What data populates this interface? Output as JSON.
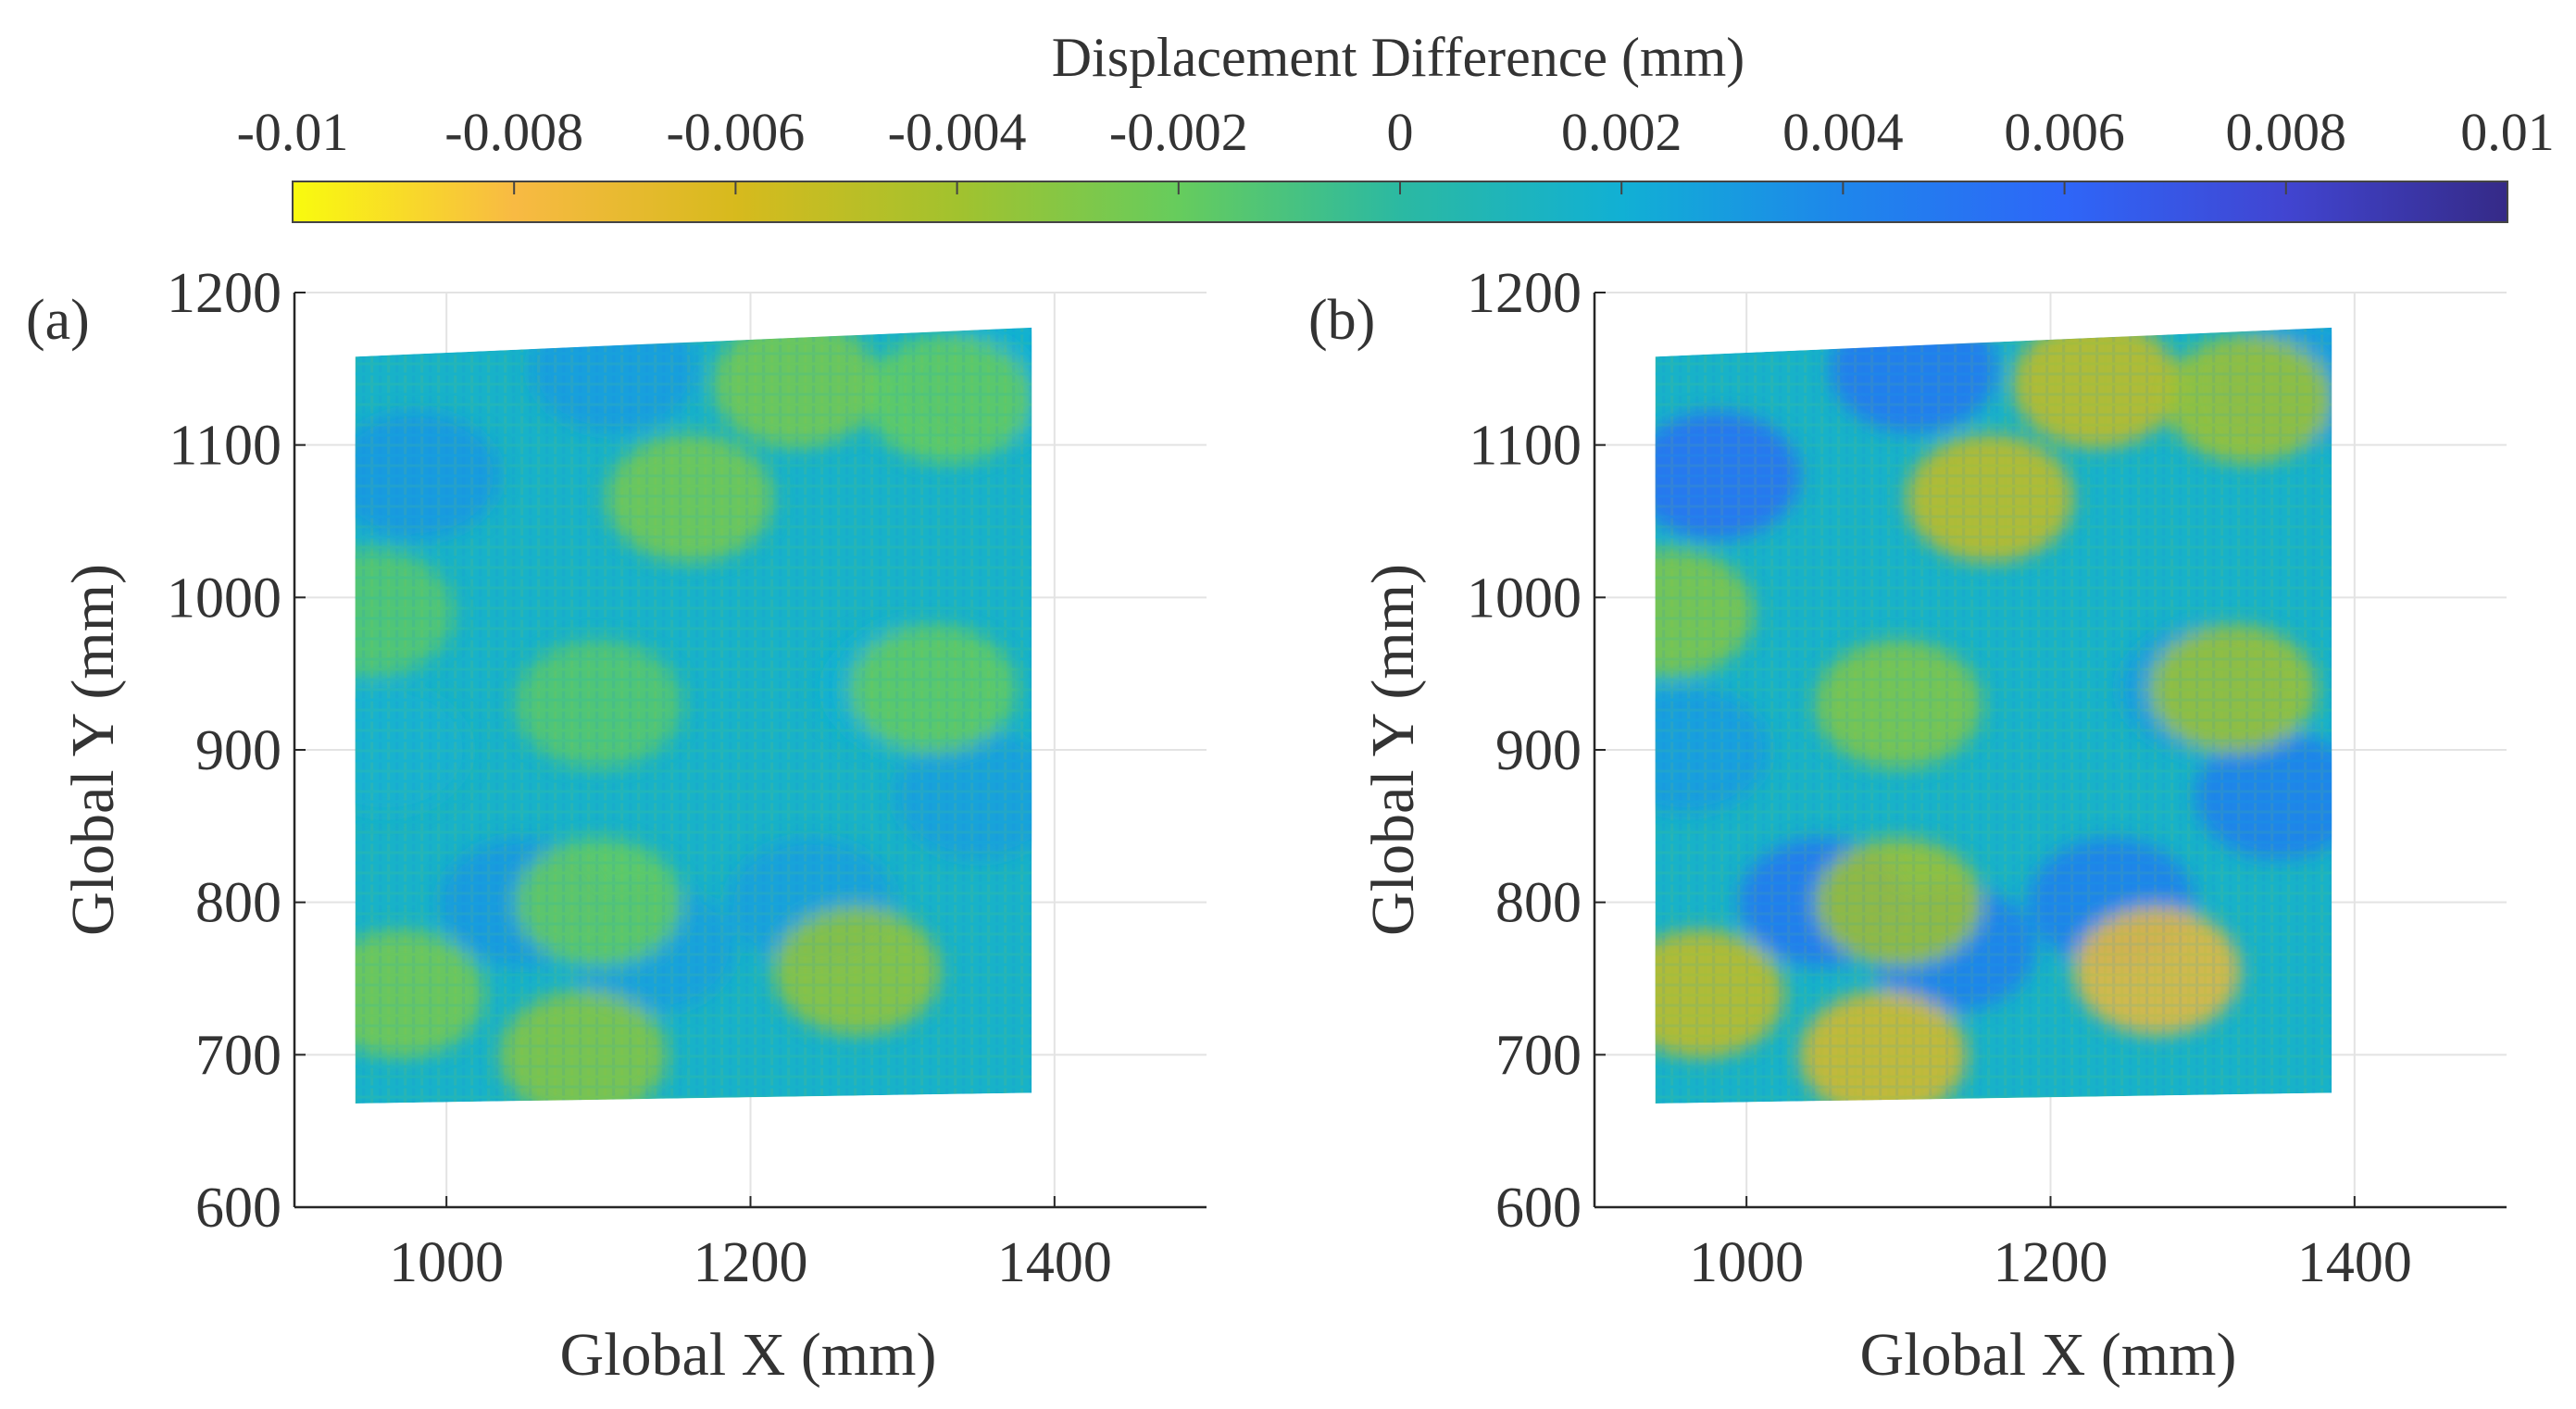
{
  "chart_data": {
    "colorbar": {
      "title": "Displacement Difference (mm)",
      "range": [
        -0.01,
        0.01
      ],
      "ticks": [
        -0.01,
        -0.008,
        -0.006,
        -0.004,
        -0.002,
        0,
        0.002,
        0.004,
        0.006,
        0.008,
        0.01
      ],
      "tick_labels": [
        "-0.01",
        "-0.008",
        "-0.006",
        "-0.004",
        "-0.002",
        "0",
        "0.002",
        "0.004",
        "0.006",
        "0.008",
        "0.01"
      ],
      "colormap": "parula",
      "colors": [
        "#f9fb0e",
        "#f8ba43",
        "#d7ba1d",
        "#a2c22e",
        "#66cc5d",
        "#2bb9a2",
        "#11b0d4",
        "#1e86eb",
        "#2e66f8",
        "#4145d1",
        "#352a87"
      ]
    },
    "charts": [
      {
        "type": "heatmap",
        "panel_label": "(a)",
        "xlabel": "Global X (mm)",
        "ylabel": "Global Y (mm)",
        "xlim": [
          900,
          1500
        ],
        "ylim": [
          600,
          1200
        ],
        "xticks": [
          1000,
          1200,
          1400
        ],
        "yticks": [
          600,
          700,
          800,
          900,
          1000,
          1100,
          1200
        ],
        "grid": true,
        "region": {
          "x": [
            940,
            1385
          ],
          "y_bottom": [
            668,
            675
          ],
          "y_top": [
            1158,
            1177
          ]
        },
        "value_range_approx": [
          -0.004,
          0.004
        ],
        "blobs": [
          {
            "x": 980,
            "y": 1080,
            "v": 0.0032
          },
          {
            "x": 1050,
            "y": 800,
            "v": 0.0032
          },
          {
            "x": 1135,
            "y": 770,
            "v": 0.0028
          },
          {
            "x": 1240,
            "y": 800,
            "v": 0.0028
          },
          {
            "x": 1110,
            "y": 1150,
            "v": 0.003
          },
          {
            "x": 1350,
            "y": 870,
            "v": 0.0028
          },
          {
            "x": 1300,
            "y": 940,
            "v": 0.002
          },
          {
            "x": 1360,
            "y": 1140,
            "v": 0.002
          },
          {
            "x": 960,
            "y": 900,
            "v": 0.0018
          },
          {
            "x": 1090,
            "y": 700,
            "v": -0.0032
          },
          {
            "x": 1270,
            "y": 755,
            "v": -0.0036
          },
          {
            "x": 1160,
            "y": 1065,
            "v": -0.0026
          },
          {
            "x": 1230,
            "y": 1140,
            "v": -0.0026
          },
          {
            "x": 1330,
            "y": 1130,
            "v": -0.002
          },
          {
            "x": 970,
            "y": 740,
            "v": -0.0026
          },
          {
            "x": 1320,
            "y": 940,
            "v": -0.002
          },
          {
            "x": 1100,
            "y": 800,
            "v": -0.002
          },
          {
            "x": 1100,
            "y": 930,
            "v": -0.0016
          },
          {
            "x": 950,
            "y": 990,
            "v": -0.0016
          }
        ]
      },
      {
        "type": "heatmap",
        "panel_label": "(b)",
        "xlabel": "Global X (mm)",
        "ylabel": "Global Y (mm)",
        "xlim": [
          900,
          1500
        ],
        "ylim": [
          600,
          1200
        ],
        "xticks": [
          1000,
          1200,
          1400
        ],
        "yticks": [
          600,
          700,
          800,
          900,
          1000,
          1100,
          1200
        ],
        "grid": true,
        "region": {
          "x": [
            940,
            1385
          ],
          "y_bottom": [
            668,
            675
          ],
          "y_top": [
            1158,
            1177
          ]
        },
        "value_range_approx": [
          -0.008,
          0.006
        ],
        "blobs": [
          {
            "x": 980,
            "y": 1080,
            "v": 0.0055
          },
          {
            "x": 1050,
            "y": 800,
            "v": 0.005
          },
          {
            "x": 1135,
            "y": 770,
            "v": 0.0045
          },
          {
            "x": 1240,
            "y": 800,
            "v": 0.0045
          },
          {
            "x": 1110,
            "y": 1150,
            "v": 0.005
          },
          {
            "x": 1350,
            "y": 870,
            "v": 0.0045
          },
          {
            "x": 1300,
            "y": 940,
            "v": 0.003
          },
          {
            "x": 1360,
            "y": 1140,
            "v": 0.003
          },
          {
            "x": 960,
            "y": 900,
            "v": 0.003
          },
          {
            "x": 1090,
            "y": 700,
            "v": -0.0065
          },
          {
            "x": 1270,
            "y": 755,
            "v": -0.0075
          },
          {
            "x": 1160,
            "y": 1065,
            "v": -0.0055
          },
          {
            "x": 1230,
            "y": 1140,
            "v": -0.0055
          },
          {
            "x": 1330,
            "y": 1130,
            "v": -0.004
          },
          {
            "x": 970,
            "y": 740,
            "v": -0.0055
          },
          {
            "x": 1320,
            "y": 940,
            "v": -0.004
          },
          {
            "x": 1100,
            "y": 800,
            "v": -0.004
          },
          {
            "x": 1100,
            "y": 930,
            "v": -0.003
          },
          {
            "x": 950,
            "y": 990,
            "v": -0.003
          }
        ]
      }
    ]
  }
}
